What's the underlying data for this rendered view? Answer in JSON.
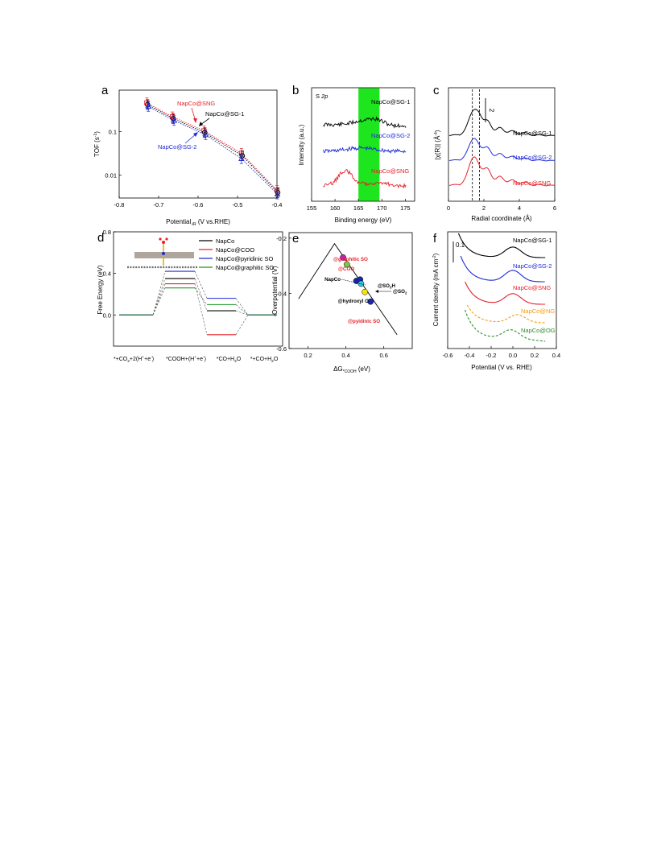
{
  "figure": {
    "panel_letters": [
      "a",
      "b",
      "c",
      "d",
      "e",
      "f"
    ]
  },
  "colors": {
    "black": "#000000",
    "red": "#e8202a",
    "blue": "#1f2bd6",
    "green": "#1a9a2a",
    "orange": "#f39c12",
    "dark_green": "#2e8b2e",
    "highlight_green": "#1ee61e",
    "magenta": "#c020c0",
    "lime": "#7cc94a",
    "cyan": "#30c8e0",
    "yellow": "#f5e50a",
    "navy": "#1a2ab0"
  },
  "chart_data": [
    {
      "panel": "a",
      "type": "scatter",
      "xlabel_main": "Potential",
      "xlabel_sub": "-iR",
      "xlabel_tail": " (V vs.RHE)",
      "ylabel_main": "TOF (s",
      "ylabel_sup": "-1",
      "ylabel_tail": ")",
      "xlim": [
        -0.8,
        -0.4
      ],
      "ylim_log": [
        0.003,
        0.9
      ],
      "log_y": true,
      "xticks": [
        "-0.8",
        "-0.7",
        "-0.6",
        "-0.5",
        "-0.4"
      ],
      "xtick_values": [
        -0.8,
        -0.7,
        -0.6,
        -0.5,
        -0.4
      ],
      "yticks": [
        "0.01",
        "0.1"
      ],
      "ytick_values": [
        0.01,
        0.1
      ],
      "series": [
        {
          "name": "NapCo@SNG",
          "color": "red",
          "marker": "square",
          "x": [
            -0.73,
            -0.665,
            -0.585,
            -0.49,
            -0.4
          ],
          "y": [
            0.46,
            0.22,
            0.105,
            0.032,
            0.0045
          ]
        },
        {
          "name": "NapCo@SG-1",
          "color": "black",
          "marker": "circle",
          "x": [
            -0.728,
            -0.663,
            -0.583,
            -0.488,
            -0.398
          ],
          "y": [
            0.42,
            0.2,
            0.095,
            0.028,
            0.004
          ]
        },
        {
          "name": "NapCo@SG-2",
          "color": "blue",
          "marker": "triangle",
          "x": [
            -0.726,
            -0.661,
            -0.581,
            -0.49,
            -0.399
          ],
          "y": [
            0.38,
            0.18,
            0.085,
            0.024,
            0.0037
          ]
        }
      ],
      "annotations": [
        "NapCo@SNG",
        "NapCo@SG-1",
        "NapCo@SG-2"
      ]
    },
    {
      "panel": "b",
      "type": "line",
      "title": "S 2p",
      "title_main": "S ",
      "title_italic": "2p",
      "xlabel": "Binding energy (eV)",
      "ylabel": "Intensity (a.u.)",
      "xlim": [
        155,
        177
      ],
      "xticks": [
        "155",
        "160",
        "165",
        "170",
        "175"
      ],
      "xtick_values": [
        155,
        160,
        165,
        170,
        175
      ],
      "highlight_band": [
        165,
        169.5
      ],
      "series": [
        {
          "name": "NapCo@SG-1",
          "color": "black"
        },
        {
          "name": "NapCo@SG-2",
          "color": "blue"
        },
        {
          "name": "NapCo@SNG",
          "color": "red"
        }
      ]
    },
    {
      "panel": "c",
      "type": "line",
      "xlabel": "Radial coordinate (Å)",
      "ylabel_main": "|χ(R)| (Å",
      "ylabel_sup": "-4",
      "ylabel_tail": ")",
      "xlim": [
        0,
        6
      ],
      "xticks": [
        "0",
        "2",
        "4",
        "6"
      ],
      "xtick_values": [
        0,
        2,
        4,
        6
      ],
      "scale_bar_label": "2",
      "dashed_lines_x": [
        1.35,
        1.75
      ],
      "series": [
        {
          "name": "NapCo@SG-1",
          "color": "black"
        },
        {
          "name": "NapCo@SG-2",
          "color": "blue"
        },
        {
          "name": "NapCo@SNG",
          "color": "red"
        }
      ]
    },
    {
      "panel": "d",
      "type": "line",
      "ylabel": "Free Energy (eV)",
      "ylim": [
        -0.3,
        0.8
      ],
      "yticks": [
        "0.0",
        "0.4",
        "0.8"
      ],
      "ytick_values": [
        0.0,
        0.4,
        0.8
      ],
      "categories": [
        "*+CO2+2(H++e-)",
        "*COOH+(H++e-)",
        "*CO+H2O",
        "*+CO+H2O"
      ],
      "series": [
        {
          "name": "NapCo",
          "color": "black",
          "values": [
            0.0,
            0.35,
            0.04,
            0.0
          ]
        },
        {
          "name": "NapCo@COO",
          "color": "red",
          "values": [
            0.0,
            0.3,
            -0.19,
            0.0
          ]
        },
        {
          "name": "NapCo@pyridinic SO",
          "color": "blue",
          "values": [
            0.0,
            0.42,
            0.16,
            0.0
          ]
        },
        {
          "name": "NapCo@graphitic SO",
          "color": "green",
          "values": [
            0.0,
            0.26,
            0.1,
            0.0
          ]
        }
      ]
    },
    {
      "panel": "e",
      "type": "scatter",
      "xlabel_main": "ΔG",
      "xlabel_sub": "*COOH",
      "xlabel_tail": " (eV)",
      "ylabel": "-Overpotential (V)",
      "xlim": [
        0.1,
        0.75
      ],
      "ylim": [
        -0.6,
        -0.18
      ],
      "xticks": [
        "0.2",
        "0.4",
        "0.6"
      ],
      "xtick_values": [
        0.2,
        0.4,
        0.6
      ],
      "yticks": [
        "-0.2",
        "-0.4",
        "-0.6"
      ],
      "ytick_values": [
        -0.2,
        -0.4,
        -0.6
      ],
      "volcano": {
        "x": [
          0.15,
          0.34,
          0.67
        ],
        "y": [
          -0.42,
          -0.22,
          -0.55
        ]
      },
      "points": [
        {
          "label": "@graphitic SO",
          "x": 0.385,
          "y": -0.27,
          "color": "magenta",
          "label_color": "red"
        },
        {
          "label": "@COO",
          "x": 0.405,
          "y": -0.295,
          "color": "lime",
          "label_color": "red"
        },
        {
          "label": "NapCo",
          "x": 0.455,
          "y": -0.355,
          "color": "navy",
          "label_color": "black"
        },
        {
          "label": "@SO3H",
          "label_main": "@SO",
          "label_sub": "3",
          "label_tail": "H",
          "x": 0.475,
          "y": -0.35,
          "color": "navy",
          "label_color": "black"
        },
        {
          "label": "@SO2",
          "label_main": "@SO",
          "label_sub": "2",
          "label_tail": "",
          "x": 0.48,
          "y": -0.365,
          "color": "cyan",
          "label_color": "black"
        },
        {
          "label": "@hydroxyl O",
          "x": 0.5,
          "y": -0.395,
          "color": "yellow",
          "label_color": "black"
        },
        {
          "label": "@pyidinic SO",
          "x": 0.53,
          "y": -0.43,
          "color": "navy",
          "label_color": "red"
        }
      ]
    },
    {
      "panel": "f",
      "type": "line",
      "xlabel": "Potential (V vs. RHE)",
      "ylabel_main": "Current density (mA cm",
      "ylabel_sup": "-2",
      "ylabel_tail": ")",
      "xlim": [
        -0.6,
        0.4
      ],
      "xticks": [
        "-0.6",
        "-0.4",
        "-0.2",
        "0.0",
        "0.2",
        "0.4"
      ],
      "xtick_values": [
        -0.6,
        -0.4,
        -0.2,
        0.0,
        0.2,
        0.4
      ],
      "scale_bar_label": "0.1",
      "series": [
        {
          "name": "NapCo@SG-1",
          "color": "black",
          "dash": false
        },
        {
          "name": "NapCo@SG-2",
          "color": "blue",
          "dash": false
        },
        {
          "name": "NapCo@SNG",
          "color": "red",
          "dash": false
        },
        {
          "name": "NapCo@NG",
          "color": "orange",
          "dash": true
        },
        {
          "name": "NapCo@OG",
          "color": "dark_green",
          "dash": true
        }
      ]
    }
  ]
}
